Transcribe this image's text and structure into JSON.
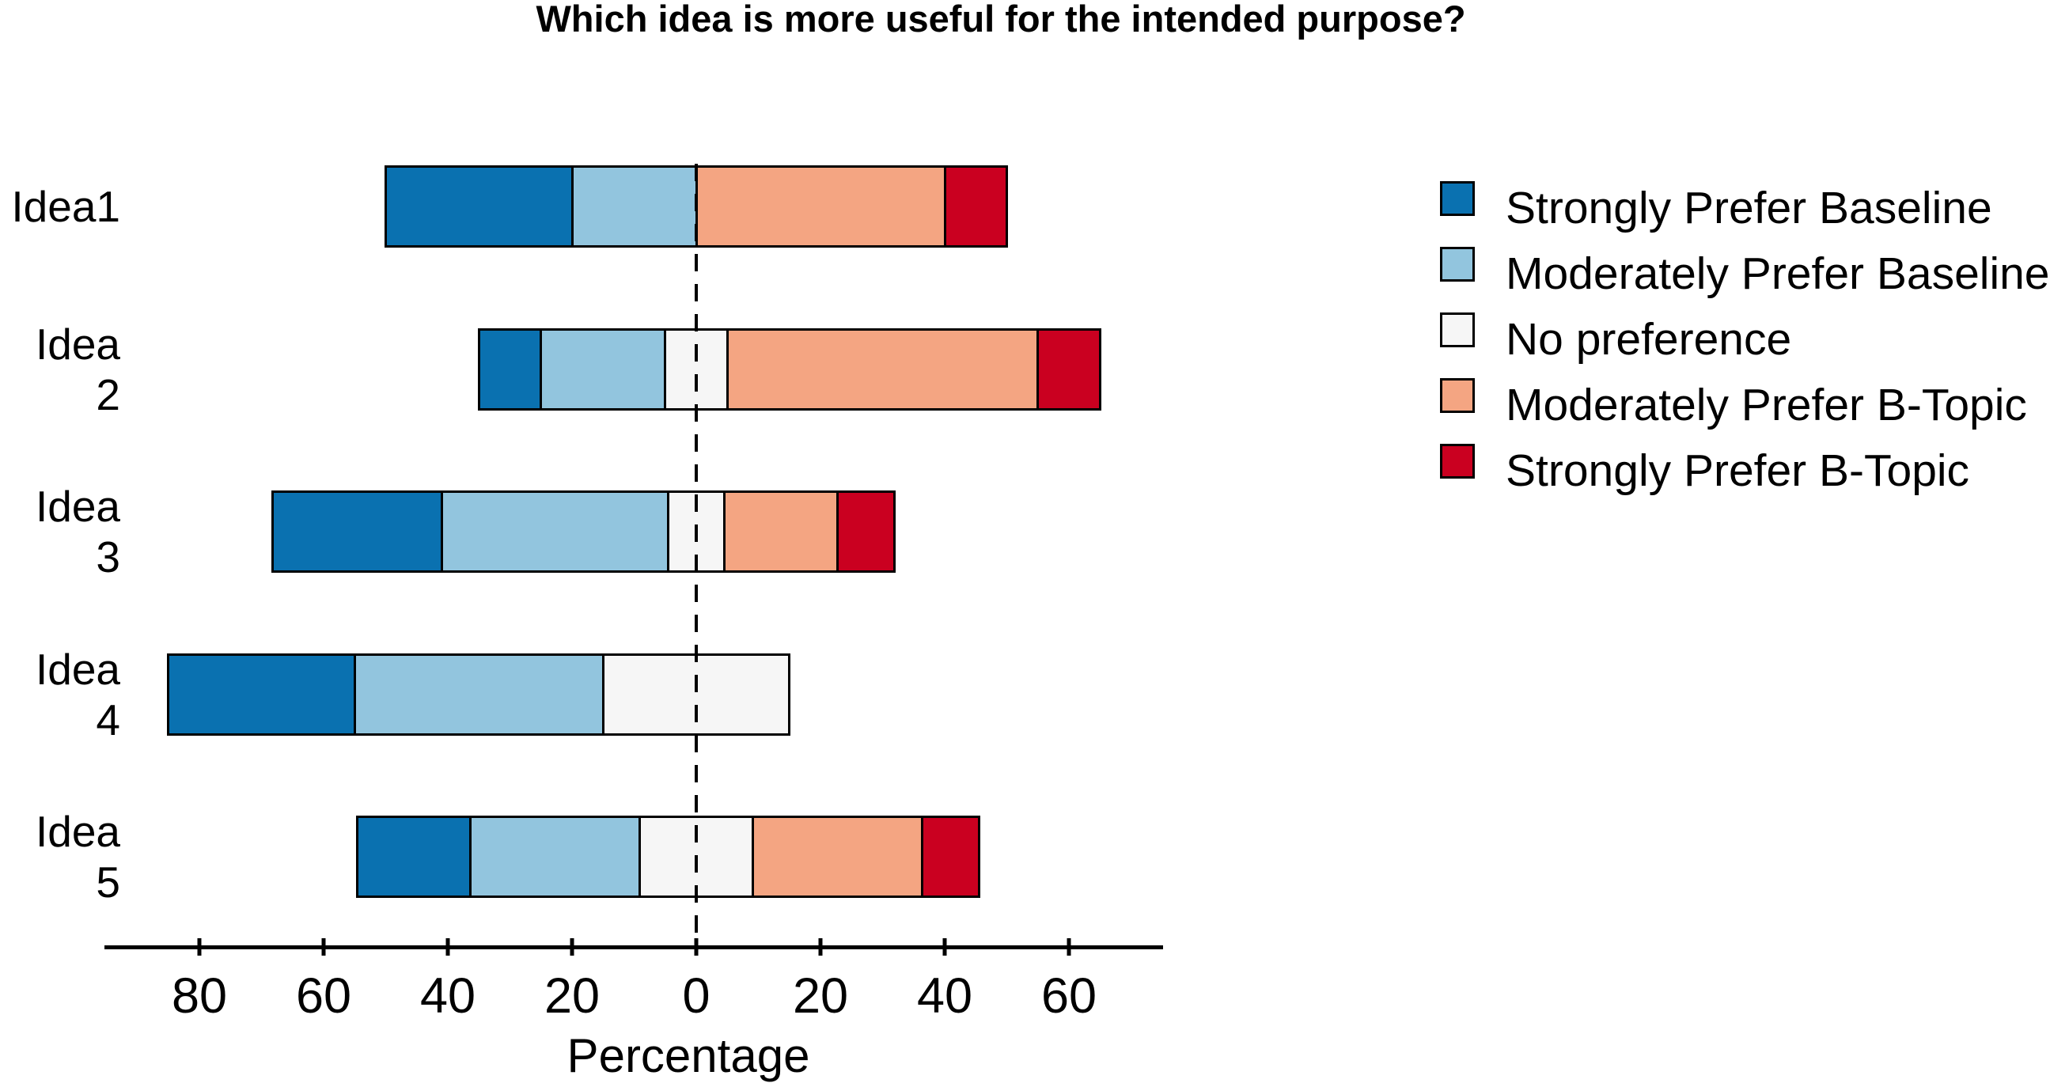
{
  "title": "Which idea is more useful for the intended purpose?",
  "axis": {
    "xlabel": "Percentage"
  },
  "legend": {
    "position": "right"
  },
  "chart_data": {
    "type": "bar",
    "variant": "diverging_stacked_likert",
    "title": "Which idea is more useful for the intended purpose?",
    "xlabel": "Percentage",
    "ylabel": "",
    "categories": [
      "Idea1",
      "Idea 2",
      "Idea 3",
      "Idea 4",
      "Idea 5"
    ],
    "series": [
      {
        "name": "Strongly Prefer Baseline",
        "color": "#0a71b0",
        "values": [
          30,
          10,
          27.3,
          30,
          18.2
        ]
      },
      {
        "name": "Moderately Prefer Baseline",
        "color": "#92c5de",
        "values": [
          20,
          20,
          36.4,
          40,
          27.3
        ]
      },
      {
        "name": "No preference",
        "color": "#f6f6f6",
        "values": [
          0,
          10,
          9.1,
          30,
          18.2
        ]
      },
      {
        "name": "Moderately Prefer B-Topic",
        "color": "#f4a582",
        "values": [
          40,
          50,
          18.2,
          0,
          27.3
        ]
      },
      {
        "name": "Strongly Prefer B-Topic",
        "color": "#ca0020",
        "values": [
          10,
          10,
          9.1,
          0,
          9.1
        ]
      }
    ],
    "stack_rule": "No-preference segment centered on zero; baseline series extend left (negative), B-Topic series extend right (positive)",
    "zero_line": "dashed vertical at 0",
    "xticks": [
      -80,
      -60,
      -40,
      -20,
      0,
      20,
      40,
      60
    ],
    "xtick_labels": [
      "80",
      "60",
      "40",
      "20",
      "0",
      "20",
      "40",
      "60"
    ],
    "xlim": [
      -95,
      75
    ],
    "grid": false,
    "legend_position": "right, no frame"
  }
}
